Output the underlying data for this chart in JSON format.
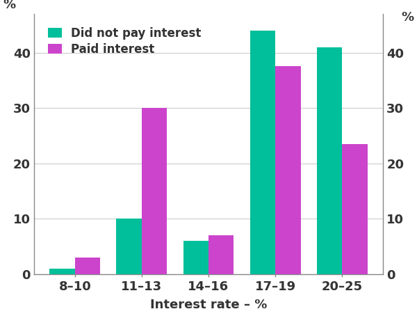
{
  "categories": [
    "8–10",
    "11–13",
    "14–16",
    "17–19",
    "20–25"
  ],
  "did_not_pay": [
    1,
    10,
    6,
    44,
    41
  ],
  "paid_interest": [
    3,
    30,
    7,
    37.5,
    23.5
  ],
  "color_did_not_pay": "#00BF9A",
  "color_paid": "#CC44CC",
  "xlabel": "Interest rate – %",
  "ylabel_left": "%",
  "ylabel_right": "%",
  "legend_did_not_pay": "Did not pay interest",
  "legend_paid": "Paid interest",
  "ylim": [
    0,
    47
  ],
  "yticks": [
    0,
    10,
    20,
    30,
    40
  ],
  "bar_width": 0.38,
  "background_color": "#ffffff",
  "grid_color": "#cccccc",
  "tick_label_fontsize": 13,
  "axis_label_fontsize": 13,
  "legend_fontsize": 12
}
